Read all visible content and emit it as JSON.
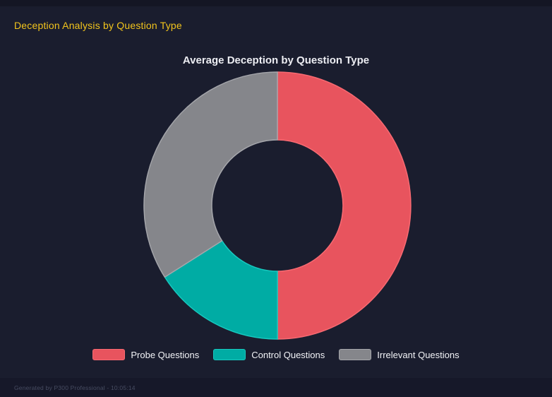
{
  "page": {
    "title": "Deception Analysis by Question Type",
    "footer_text": "Generated by P300 Professional - 10:05:14"
  },
  "theme": {
    "background": "#1A1D2E",
    "top_edge": "#141624",
    "footer_background": "#161829",
    "page_title_color": "#F2C41C",
    "chart_title_color": "#ECEDF2",
    "legend_text_color": "#F2F3F7",
    "footer_text_color": "#474C61"
  },
  "chart_data": {
    "type": "pie",
    "variant": "donut",
    "title": "Average Deception by Question Type",
    "categories": [
      "Probe Questions",
      "Control Questions",
      "Irrelevant Questions"
    ],
    "values": [
      50,
      16,
      34
    ],
    "value_unit": "percent (estimated from arc angles, no numeric labels shown)",
    "colors": [
      "#E8545E",
      "#00ACA4",
      "#85868B"
    ],
    "border_colors": [
      "#F86A72",
      "#17C9BF",
      "#A5A6AB"
    ],
    "start_angle_deg": 0,
    "direction": "clockwise",
    "inner_radius_ratio": 0.49,
    "legend_position": "bottom",
    "background_hole_color": "#1A1D2E"
  }
}
